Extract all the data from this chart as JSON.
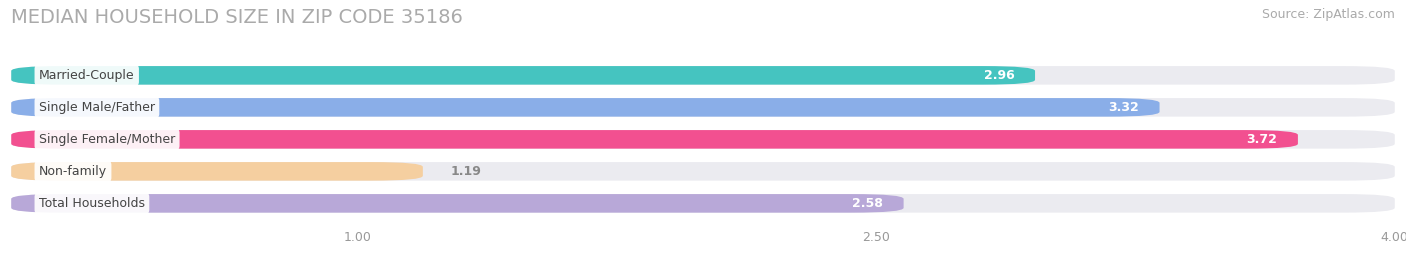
{
  "title": "MEDIAN HOUSEHOLD SIZE IN ZIP CODE 35186",
  "source": "Source: ZipAtlas.com",
  "categories": [
    "Married-Couple",
    "Single Male/Father",
    "Single Female/Mother",
    "Non-family",
    "Total Households"
  ],
  "values": [
    2.96,
    3.32,
    3.72,
    1.19,
    2.58
  ],
  "bar_colors": [
    "#45c4c0",
    "#8aaee8",
    "#f25090",
    "#f5cfa0",
    "#b8a8d8"
  ],
  "value_label_colors": [
    "white",
    "white",
    "white",
    "#888888",
    "#888888"
  ],
  "xlim_min": 0,
  "xlim_max": 4.0,
  "xticks": [
    1.0,
    2.5,
    4.0
  ],
  "background_color": "#ffffff",
  "bar_bg_color": "#ebebf0",
  "title_fontsize": 14,
  "source_fontsize": 9,
  "bar_height": 0.58,
  "bar_gap": 0.42
}
